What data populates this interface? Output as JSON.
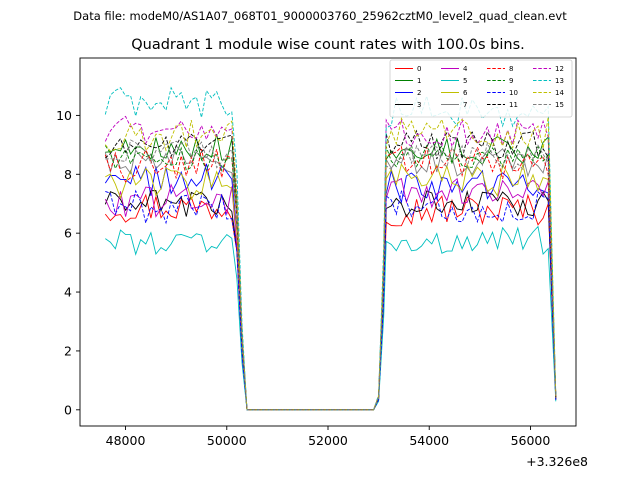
{
  "page": {
    "suptitle": "Data file: modeM0/AS1A07_068T01_9000003760_25962cztM0_level2_quad_clean.evt",
    "title": "Quadrant 1 module wise count rates with 100.0s bins."
  },
  "chart_data": {
    "type": "line",
    "title": "Quadrant 1 module wise count rates with 100.0s bins.",
    "xlabel": "",
    "ylabel": "",
    "x_offset_label": "+3.326e8",
    "x_offset": 332600000,
    "xlim": [
      47100,
      56900
    ],
    "ylim": [
      -0.55,
      11.95
    ],
    "xticks": [
      48000,
      50000,
      52000,
      54000,
      56000
    ],
    "xtick_labels": [
      "48000",
      "50000",
      "52000",
      "54000",
      "56000"
    ],
    "yticks": [
      0,
      2,
      4,
      6,
      8,
      10
    ],
    "ytick_labels": [
      "0",
      "2",
      "4",
      "6",
      "8",
      "10"
    ],
    "grid": false,
    "legend_position": "top-right",
    "legend_columns": 4,
    "bin_width": 100,
    "segments": [
      {
        "start": 47600,
        "end": 50100,
        "falloff": [
          50200,
          50300,
          50400
        ],
        "falloff_fraction": [
          0.78,
          0.28,
          0.0
        ]
      },
      {
        "start": 53150,
        "end": 56400,
        "rampup": [
          52900,
          53000,
          53100
        ],
        "rampup_fraction": [
          0.0,
          0.05,
          0.55
        ],
        "final": [
          56500
        ],
        "final_fraction": [
          0.05
        ]
      }
    ],
    "gap": {
      "from": 50400,
      "to": 52900,
      "value": 0.0
    },
    "series": [
      {
        "name": "0",
        "color": "#ff0000",
        "dash": "solid",
        "mean1": 6.9,
        "mean2": 6.8,
        "noise": 0.35
      },
      {
        "name": "1",
        "color": "#008000",
        "dash": "solid",
        "mean1": 8.9,
        "mean2": 8.8,
        "noise": 0.3
      },
      {
        "name": "2",
        "color": "#0000ff",
        "dash": "solid",
        "mean1": 7.8,
        "mean2": 7.6,
        "noise": 0.35
      },
      {
        "name": "3",
        "color": "#000000",
        "dash": "solid",
        "mean1": 7.0,
        "mean2": 7.0,
        "noise": 0.3
      },
      {
        "name": "4",
        "color": "#bf00bf",
        "dash": "solid",
        "mean1": 7.1,
        "mean2": 7.3,
        "noise": 0.35
      },
      {
        "name": "5",
        "color": "#00bfbf",
        "dash": "solid",
        "mean1": 5.7,
        "mean2": 5.75,
        "noise": 0.3
      },
      {
        "name": "6",
        "color": "#bfbf00",
        "dash": "solid",
        "mean1": 7.7,
        "mean2": 7.8,
        "noise": 0.35
      },
      {
        "name": "7",
        "color": "#808080",
        "dash": "solid",
        "mean1": 8.5,
        "mean2": 8.4,
        "noise": 0.3
      },
      {
        "name": "8",
        "color": "#ff0000",
        "dash": "dashed",
        "mean1": 8.3,
        "mean2": 8.4,
        "noise": 0.35
      },
      {
        "name": "9",
        "color": "#008000",
        "dash": "dashed",
        "mean1": 8.6,
        "mean2": 8.7,
        "noise": 0.3
      },
      {
        "name": "10",
        "color": "#0000ff",
        "dash": "dashed",
        "mean1": 6.9,
        "mean2": 6.9,
        "noise": 0.35
      },
      {
        "name": "11",
        "color": "#000000",
        "dash": "dashed",
        "mean1": 9.0,
        "mean2": 9.0,
        "noise": 0.3
      },
      {
        "name": "12",
        "color": "#bf00bf",
        "dash": "dashed",
        "mean1": 9.5,
        "mean2": 9.4,
        "noise": 0.3
      },
      {
        "name": "13",
        "color": "#00bfbf",
        "dash": "dashed",
        "mean1": 10.4,
        "mean2": 10.1,
        "noise": 0.35
      },
      {
        "name": "14",
        "color": "#bfbf00",
        "dash": "dashed",
        "mean1": 9.3,
        "mean2": 9.4,
        "noise": 0.35
      },
      {
        "name": "15",
        "color": "#808080",
        "dash": "dashed",
        "mean1": 8.7,
        "mean2": 8.6,
        "noise": 0.3
      }
    ]
  }
}
